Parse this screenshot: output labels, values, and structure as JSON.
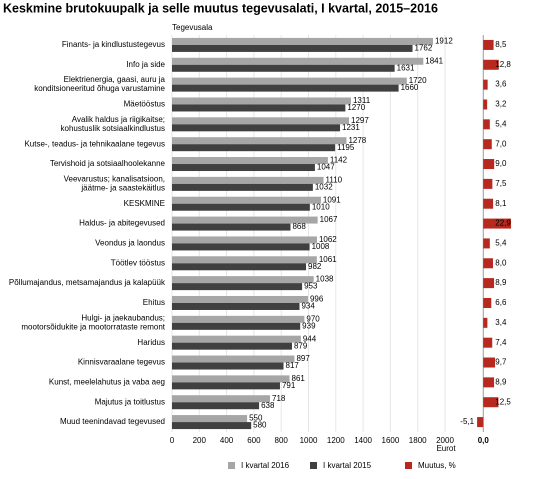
{
  "chart_data": {
    "type": "bar",
    "orientation": "horizontal",
    "title": "Keskmine brutokuupalk ja selle muutus tegevusalati, I kvartal, 2015–2016",
    "category_axis_label": "Tegevusala",
    "xlabel": "Eurot",
    "categories": [
      "Finants- ja kindlustustegevus",
      "Info ja side",
      "Elektrienergia, gaasi, auru ja\nkonditsioneeritud õhuga varustamine",
      "Mäetööstus",
      "Avalik haldus ja riigikaitse;\nkohustuslik sotsiaalkindlustus",
      "Kutse-, teadus- ja tehnikaalane tegevus",
      "Tervishoid ja sotsiaalhoolekanne",
      "Veevarustus; kanalisatsioon,\njäätme- ja saastekäitlus",
      "KESKMINE",
      "Haldus- ja abitegevused",
      "Veondus ja laondus",
      "Töötlev tööstus",
      "Põllumajandus, metsamajandus ja kalapüük",
      "Ehitus",
      "Hulgi- ja jaekaubandus;\nmootorsõidukite ja mootorrataste remont",
      "Haridus",
      "Kinnisvaraalane tegevus",
      "Kunst, meelelahutus ja vaba aeg",
      "Majutus ja toitlustus",
      "Muud teenindavad tegevused"
    ],
    "series": [
      {
        "name": "I kvartal 2016",
        "color": "#a6a6a6",
        "values": [
          1912,
          1841,
          1720,
          1311,
          1297,
          1278,
          1142,
          1110,
          1091,
          1067,
          1062,
          1061,
          1038,
          996,
          970,
          944,
          897,
          861,
          718,
          550
        ]
      },
      {
        "name": "I kvartal 2015",
        "color": "#404040",
        "values": [
          1762,
          1631,
          1660,
          1270,
          1231,
          1195,
          1047,
          1032,
          1010,
          868,
          1008,
          982,
          953,
          934,
          939,
          879,
          817,
          791,
          638,
          580
        ]
      },
      {
        "name": "Muutus, %",
        "color": "#b7281e",
        "axis": "x2",
        "values": [
          8.5,
          12.8,
          3.6,
          3.2,
          5.4,
          7.0,
          9.0,
          7.5,
          8.1,
          22.9,
          5.4,
          8.0,
          8.9,
          6.6,
          3.4,
          7.4,
          9.7,
          8.9,
          12.5,
          -5.1
        ],
        "value_labels": [
          "8,5",
          "12,8",
          "3,6",
          "3,2",
          "5,4",
          "7,0",
          "9,0",
          "7,5",
          "8,1",
          "22,9",
          "5,4",
          "8,0",
          "8,9",
          "6,6",
          "3,4",
          "7,4",
          "9,7",
          "8,9",
          "12,5",
          "-5,1"
        ]
      }
    ],
    "xlim": [
      0,
      2000
    ],
    "xticks": [
      0,
      200,
      400,
      600,
      800,
      1000,
      1200,
      1400,
      1600,
      1800,
      2000
    ],
    "x2lim": [
      -6,
      27
    ],
    "x2ticks": [
      {
        "value": 0,
        "label": "0,0"
      }
    ],
    "grid": true
  }
}
